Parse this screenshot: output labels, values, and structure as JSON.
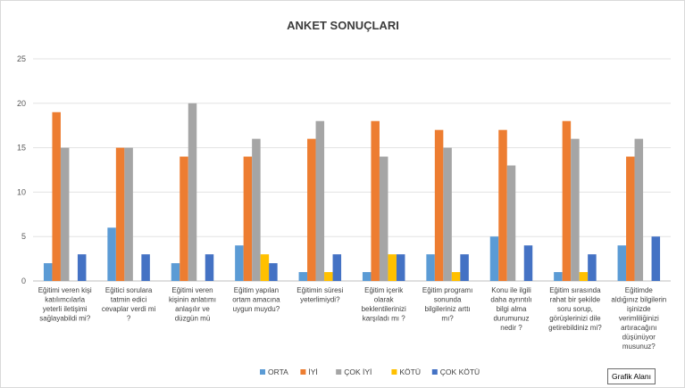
{
  "chart_data": {
    "type": "bar",
    "title": "ANKET SONUÇLARI",
    "ylim": [
      0,
      25
    ],
    "yticks": [
      0,
      5,
      10,
      15,
      20,
      25
    ],
    "grid": true,
    "legend_position": "bottom",
    "categories": [
      [
        "Eğitimi veren kişi",
        "katılımcılarla",
        "yeterli iletişimi",
        "sağlayabildi mi?"
      ],
      [
        "Eğitici sorulara",
        "tatmin edici",
        "cevaplar verdi mi",
        "?"
      ],
      [
        "Eğitimi veren",
        "kişinin anlatımı",
        "anlaşılır ve",
        "düzgün mü"
      ],
      [
        "Eğitim yapılan",
        "ortam amacına",
        "uygun muydu?"
      ],
      [
        "Eğitimin süresi",
        "yeterlimiydi?"
      ],
      [
        "Eğitim içerik",
        "olarak",
        "beklentilerinizi",
        "karşıladı mı ?"
      ],
      [
        "Eğitim programı",
        "sonunda",
        "bilgileriniz arttı",
        "mı?"
      ],
      [
        "Konu ile ilgili",
        "daha ayrıntılı",
        "bilgi alma",
        "durumunuz",
        "nedir ?"
      ],
      [
        "Eğitim sırasında",
        "rahat bir şekilde",
        "soru sorup,",
        "görüşlerinizi dile",
        "getirebildiniz mi?"
      ],
      [
        "Eğitimde",
        "aldığınız bilgilerin",
        "işinizde",
        "verimliliğinizi",
        "artıracağını",
        "düşünüyor",
        "musunuz?"
      ]
    ],
    "series": [
      {
        "name": "ORTA",
        "color": "#5b9bd5",
        "values": [
          2,
          6,
          2,
          4,
          1,
          1,
          3,
          5,
          1,
          4
        ]
      },
      {
        "name": "İYİ",
        "color": "#ed7d31",
        "values": [
          19,
          15,
          14,
          14,
          16,
          18,
          17,
          17,
          18,
          14
        ]
      },
      {
        "name": "ÇOK İYİ",
        "color": "#a5a5a5",
        "values": [
          15,
          15,
          20,
          16,
          18,
          14,
          15,
          13,
          16,
          16
        ]
      },
      {
        "name": "KÖTÜ",
        "color": "#ffc000",
        "values": [
          0,
          0,
          0,
          3,
          1,
          3,
          1,
          0,
          1,
          0
        ]
      },
      {
        "name": "ÇOK KÖTÜ",
        "color": "#4472c4",
        "values": [
          3,
          3,
          3,
          2,
          3,
          3,
          3,
          4,
          3,
          5
        ]
      }
    ]
  },
  "tooltip": {
    "label": "Grafik Alanı"
  }
}
